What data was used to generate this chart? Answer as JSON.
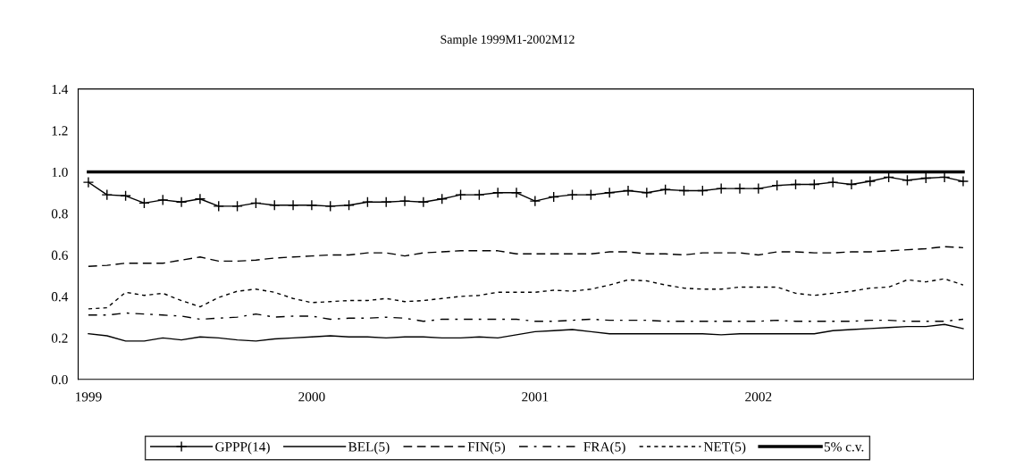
{
  "chart_data": {
    "type": "line",
    "title": "Sample 1999M1-2002M12",
    "categories": [
      "1999",
      null,
      null,
      null,
      null,
      null,
      null,
      null,
      null,
      null,
      null,
      null,
      "2000",
      null,
      null,
      null,
      null,
      null,
      null,
      null,
      null,
      null,
      null,
      null,
      "2001",
      null,
      null,
      null,
      null,
      null,
      null,
      null,
      null,
      null,
      null,
      null,
      "2002",
      null,
      null,
      null,
      null,
      null,
      null,
      null,
      null,
      null,
      null,
      null
    ],
    "ylim": [
      0,
      1.4
    ],
    "yticks": [
      {
        "value": 0,
        "label": "0.0"
      },
      {
        "value": 0.2,
        "label": "0.2"
      },
      {
        "value": 0.4,
        "label": "0.4"
      },
      {
        "value": 0.6,
        "label": "0.6"
      },
      {
        "value": 0.8,
        "label": "0.8"
      },
      {
        "value": 1.0,
        "label": "1.0"
      },
      {
        "value": 1.2,
        "label": "1.2"
      },
      {
        "value": 1.4,
        "label": "1.4"
      }
    ],
    "grid": false,
    "legend": "bottom",
    "series": [
      {
        "name": "GPPP(14)",
        "color": "#000000",
        "marker": "cross",
        "line_style": "solid",
        "values": [
          0.95,
          0.89,
          0.885,
          0.85,
          0.865,
          0.855,
          0.87,
          0.835,
          0.835,
          0.85,
          0.84,
          0.84,
          0.84,
          0.835,
          0.84,
          0.855,
          0.855,
          0.86,
          0.855,
          0.87,
          0.89,
          0.89,
          0.9,
          0.9,
          0.86,
          0.88,
          0.89,
          0.89,
          0.9,
          0.91,
          0.9,
          0.915,
          0.91,
          0.91,
          0.92,
          0.92,
          0.92,
          0.935,
          0.94,
          0.94,
          0.95,
          0.94,
          0.955,
          0.975,
          0.96,
          0.97,
          0.975,
          0.955
        ]
      },
      {
        "name": "BEL(5)",
        "color": "#000000",
        "line_style": "solid",
        "values": [
          0.22,
          0.21,
          0.185,
          0.185,
          0.2,
          0.19,
          0.205,
          0.2,
          0.19,
          0.185,
          0.195,
          0.2,
          0.205,
          0.21,
          0.205,
          0.205,
          0.2,
          0.205,
          0.205,
          0.2,
          0.2,
          0.205,
          0.2,
          0.215,
          0.23,
          0.235,
          0.24,
          0.23,
          0.22,
          0.22,
          0.22,
          0.22,
          0.22,
          0.22,
          0.215,
          0.22,
          0.22,
          0.22,
          0.22,
          0.22,
          0.235,
          0.24,
          0.245,
          0.25,
          0.255,
          0.255,
          0.265,
          0.245
        ]
      },
      {
        "name": "FIN(5)",
        "color": "#000000",
        "line_style": "dashed",
        "values": [
          0.545,
          0.55,
          0.56,
          0.56,
          0.56,
          0.575,
          0.59,
          0.57,
          0.57,
          0.575,
          0.585,
          0.59,
          0.595,
          0.6,
          0.6,
          0.61,
          0.61,
          0.595,
          0.61,
          0.615,
          0.62,
          0.62,
          0.62,
          0.605,
          0.605,
          0.605,
          0.605,
          0.605,
          0.615,
          0.615,
          0.605,
          0.605,
          0.6,
          0.61,
          0.61,
          0.61,
          0.6,
          0.615,
          0.615,
          0.61,
          0.61,
          0.615,
          0.615,
          0.62,
          0.625,
          0.63,
          0.64,
          0.635
        ]
      },
      {
        "name": "FRA(5)",
        "color": "#000000",
        "line_style": "dashdot",
        "values": [
          0.31,
          0.31,
          0.32,
          0.315,
          0.31,
          0.305,
          0.29,
          0.295,
          0.3,
          0.315,
          0.3,
          0.305,
          0.305,
          0.29,
          0.295,
          0.295,
          0.3,
          0.295,
          0.28,
          0.29,
          0.29,
          0.29,
          0.29,
          0.29,
          0.28,
          0.28,
          0.285,
          0.29,
          0.285,
          0.285,
          0.285,
          0.28,
          0.28,
          0.28,
          0.28,
          0.28,
          0.28,
          0.285,
          0.28,
          0.28,
          0.28,
          0.28,
          0.285,
          0.285,
          0.28,
          0.28,
          0.28,
          0.29
        ]
      },
      {
        "name": "NET(5)",
        "color": "#000000",
        "line_style": "dotted",
        "values": [
          0.34,
          0.345,
          0.42,
          0.405,
          0.415,
          0.38,
          0.35,
          0.395,
          0.425,
          0.435,
          0.42,
          0.39,
          0.37,
          0.375,
          0.38,
          0.38,
          0.39,
          0.375,
          0.38,
          0.39,
          0.4,
          0.405,
          0.42,
          0.42,
          0.42,
          0.43,
          0.425,
          0.435,
          0.455,
          0.48,
          0.475,
          0.455,
          0.44,
          0.435,
          0.435,
          0.445,
          0.445,
          0.445,
          0.415,
          0.405,
          0.415,
          0.425,
          0.44,
          0.445,
          0.48,
          0.47,
          0.485,
          0.455
        ]
      }
    ],
    "ref_lines": [
      {
        "axis": "y",
        "value": 1.0,
        "label": "5% c.v.",
        "color": "#000000",
        "line_style": "solid"
      }
    ]
  }
}
